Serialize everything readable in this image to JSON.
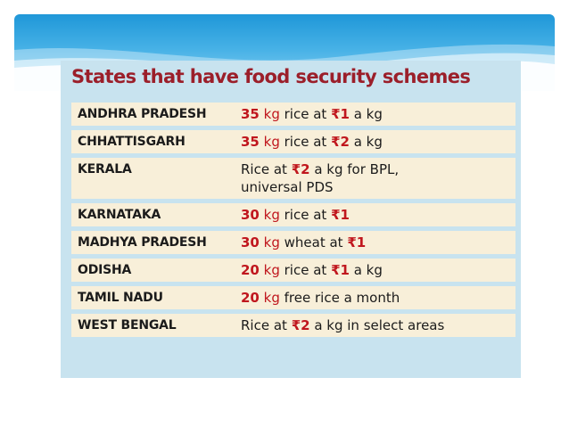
{
  "title": "States that have food security schemes",
  "rows": [
    {
      "state": "ANDHRA PRADESH",
      "parts": [
        {
          "t": "35",
          "s": "num"
        },
        {
          "t": " "
        },
        {
          "t": "kg",
          "s": "unit"
        },
        {
          "t": " rice at "
        },
        {
          "t": "₹1",
          "s": "rupee"
        },
        {
          "t": " a kg"
        }
      ]
    },
    {
      "state": "CHHATTISGARH",
      "parts": [
        {
          "t": "35",
          "s": "num"
        },
        {
          "t": " "
        },
        {
          "t": "kg",
          "s": "unit"
        },
        {
          "t": " rice at "
        },
        {
          "t": "₹2",
          "s": "rupee"
        },
        {
          "t": " a kg"
        }
      ]
    },
    {
      "state": "KERALA",
      "parts": [
        {
          "t": "Rice at "
        },
        {
          "t": "₹2",
          "s": "rupee"
        },
        {
          "t": " a kg for BPL,"
        },
        {
          "t": "\n"
        },
        {
          "t": "universal PDS"
        }
      ]
    },
    {
      "state": "KARNATAKA",
      "parts": [
        {
          "t": "30",
          "s": "num"
        },
        {
          "t": " "
        },
        {
          "t": "kg",
          "s": "unit"
        },
        {
          "t": " rice at "
        },
        {
          "t": "₹1",
          "s": "rupee"
        }
      ]
    },
    {
      "state": "MADHYA PRADESH",
      "parts": [
        {
          "t": "30",
          "s": "num"
        },
        {
          "t": " "
        },
        {
          "t": "kg",
          "s": "unit"
        },
        {
          "t": " wheat at "
        },
        {
          "t": "₹1",
          "s": "rupee"
        }
      ]
    },
    {
      "state": "ODISHA",
      "parts": [
        {
          "t": "20",
          "s": "num"
        },
        {
          "t": " "
        },
        {
          "t": "kg",
          "s": "unit"
        },
        {
          "t": " rice at "
        },
        {
          "t": "₹1",
          "s": "rupee"
        },
        {
          "t": " a kg"
        }
      ]
    },
    {
      "state": "TAMIL NADU",
      "parts": [
        {
          "t": "20",
          "s": "num"
        },
        {
          "t": " "
        },
        {
          "t": "kg",
          "s": "unit"
        },
        {
          "t": " free rice a month"
        }
      ]
    },
    {
      "state": "WEST BENGAL",
      "parts": [
        {
          "t": "Rice at "
        },
        {
          "t": "₹2",
          "s": "rupee"
        },
        {
          "t": " a kg in select areas"
        }
      ]
    }
  ],
  "colors": {
    "title": "#9b1f2a",
    "highlight": "#c0171e",
    "row_bg": "#f8efd9",
    "card_bg": "#c8e3ef",
    "banner": "#1f97d8"
  }
}
